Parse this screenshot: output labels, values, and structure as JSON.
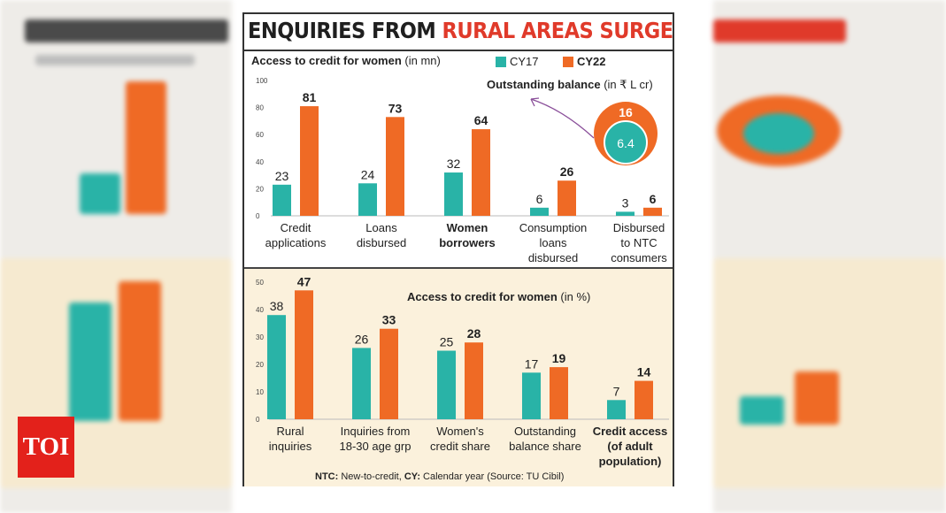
{
  "headline": {
    "part1": "ENQUIRIES FROM",
    "part2": "RURAL AREAS SURGE"
  },
  "legend": [
    {
      "label": "CY17",
      "color": "#29b3a7"
    },
    {
      "label": "CY22",
      "color": "#ef6a25"
    }
  ],
  "colors": {
    "cy17": "#29b3a7",
    "cy22": "#ef6a25",
    "title_accent": "#e03a2a",
    "bottom_panel": "#fbf1dc"
  },
  "chart_data": [
    {
      "type": "bar",
      "title": "Access to credit for women",
      "title_unit": "(in mn)",
      "categories": [
        [
          "Credit",
          "applications"
        ],
        [
          "Loans",
          "disbursed"
        ],
        [
          "Women",
          "borrowers"
        ],
        [
          "Consumption",
          "loans",
          "disbursed"
        ],
        [
          "Disbursed",
          "to NTC",
          "consumers"
        ]
      ],
      "bold_category_index": 2,
      "series": [
        {
          "name": "CY17",
          "values": [
            23,
            24,
            32,
            6,
            3
          ]
        },
        {
          "name": "CY22",
          "values": [
            81,
            73,
            64,
            26,
            6
          ]
        }
      ],
      "ylim": [
        0,
        100
      ],
      "yticks": [
        0,
        20,
        40,
        60,
        80,
        100
      ]
    },
    {
      "type": "pie",
      "title": "Outstanding balance",
      "title_unit": "(in ₹ L cr)",
      "outer_value": "16",
      "inner_value": "6.4"
    },
    {
      "type": "bar",
      "title": "Access to credit for women",
      "title_unit": "(in %)",
      "categories": [
        [
          "Rural",
          "inquiries"
        ],
        [
          "Inquiries from",
          "18-30 age grp"
        ],
        [
          "Women's",
          "credit share"
        ],
        [
          "Outstanding",
          "balance share"
        ],
        [
          "Credit access",
          "(of adult",
          "population)"
        ]
      ],
      "bold_category_index": 4,
      "series": [
        {
          "name": "CY17",
          "values": [
            38,
            26,
            25,
            17,
            7
          ]
        },
        {
          "name": "CY22",
          "values": [
            47,
            33,
            28,
            19,
            14
          ]
        }
      ],
      "ylim": [
        0,
        50
      ],
      "yticks": [
        0,
        10,
        20,
        30,
        40,
        50
      ]
    }
  ],
  "footnote": {
    "ntc_key": "NTC:",
    "ntc_text": "New-to-credit,",
    "cy_key": "CY:",
    "cy_text": "Calendar year (Source: TU Cibil)"
  },
  "logo": "TOI"
}
